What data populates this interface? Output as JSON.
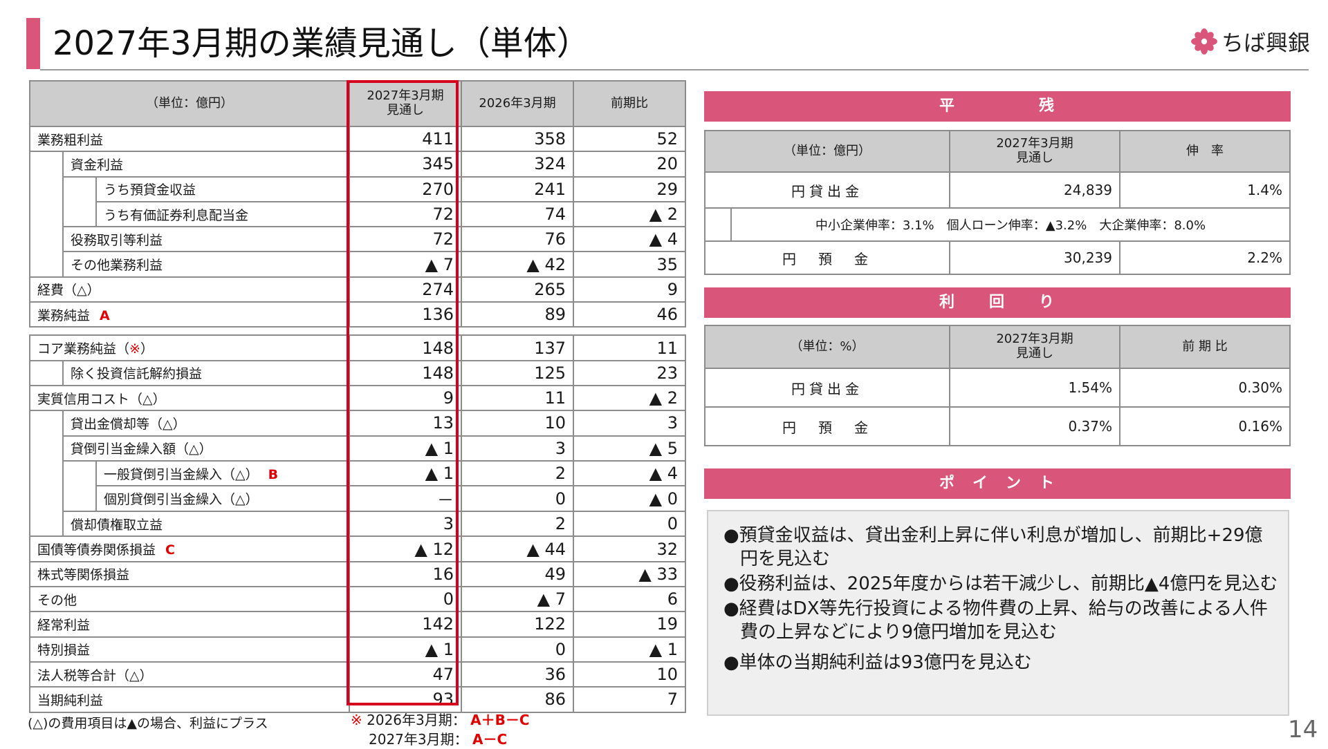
{
  "header": {
    "title": "2027年3月期の業績見通し（単体）",
    "logo_text": "ちば興銀",
    "accent_color": "#d9557a"
  },
  "main_table": {
    "headers": [
      "（単位：億円）",
      "2027年3月期\n見通し",
      "2026年3月期",
      "前期比"
    ],
    "header_col1_line1": "2027年3月期",
    "header_col1_line2": "見通し",
    "rows": [
      {
        "label": "業務粗利益",
        "mark": "",
        "v1": "411",
        "v2": "358",
        "v3": "52"
      },
      {
        "label": "資金利益",
        "mark": "",
        "v1": "345",
        "v2": "324",
        "v3": "20"
      },
      {
        "label": "うち預貸金収益",
        "mark": "",
        "v1": "270",
        "v2": "241",
        "v3": "29"
      },
      {
        "label": "うち有価証券利息配当金",
        "mark": "",
        "v1": "72",
        "v2": "74",
        "v3": "▲ 2"
      },
      {
        "label": "役務取引等利益",
        "mark": "",
        "v1": "72",
        "v2": "76",
        "v3": "▲ 4"
      },
      {
        "label": "その他業務利益",
        "mark": "",
        "v1": "▲ 7",
        "v2": "▲ 42",
        "v3": "35"
      },
      {
        "label": "経費（△）",
        "mark": "",
        "v1": "274",
        "v2": "265",
        "v3": "9"
      },
      {
        "label": "業務純益",
        "mark": "A",
        "v1": "136",
        "v2": "89",
        "v3": "46"
      },
      {
        "label": "コア業務純益（",
        "mark": "※",
        "suffix": "）",
        "v1": "148",
        "v2": "137",
        "v3": "11"
      },
      {
        "label": "除く投資信託解約損益",
        "mark": "",
        "v1": "148",
        "v2": "125",
        "v3": "23"
      },
      {
        "label": "実質信用コスト（△）",
        "mark": "",
        "v1": "9",
        "v2": "11",
        "v3": "▲ 2"
      },
      {
        "label": "貸出金償却等（△）",
        "mark": "",
        "v1": "13",
        "v2": "10",
        "v3": "3"
      },
      {
        "label": "貸倒引当金繰入額（△）",
        "mark": "",
        "v1": "▲ 1",
        "v2": "3",
        "v3": "▲ 5"
      },
      {
        "label": "一般貸倒引当金繰入（△）",
        "mark": "B",
        "v1": "▲ 1",
        "v2": "2",
        "v3": "▲ 4"
      },
      {
        "label": "個別貸倒引当金繰入（△）",
        "mark": "",
        "v1": "－",
        "v2": "0",
        "v3": "▲ 0"
      },
      {
        "label": "償却債権取立益",
        "mark": "",
        "v1": "3",
        "v2": "2",
        "v3": "0"
      },
      {
        "label": "国債等債券関係損益",
        "mark": "C",
        "v1": "▲ 12",
        "v2": "▲ 44",
        "v3": "32"
      },
      {
        "label": "株式等関係損益",
        "mark": "",
        "v1": "16",
        "v2": "49",
        "v3": "▲ 33"
      },
      {
        "label": "その他",
        "mark": "",
        "v1": "0",
        "v2": "▲ 7",
        "v3": "6"
      },
      {
        "label": "経常利益",
        "mark": "",
        "v1": "142",
        "v2": "122",
        "v3": "19"
      },
      {
        "label": "特別損益",
        "mark": "",
        "v1": "▲ 1",
        "v2": "0",
        "v3": "▲ 1"
      },
      {
        "label": "法人税等合計（△）",
        "mark": "",
        "v1": "47",
        "v2": "36",
        "v3": "10"
      },
      {
        "label": "当期純利益",
        "mark": "",
        "v1": "93",
        "v2": "86",
        "v3": "7"
      }
    ]
  },
  "footnotes": {
    "left": "(△)の費用項目は▲の場合、利益にプラス",
    "mark": "※",
    "line1_label": "2026年3月期：",
    "line1_formula": "A＋B－C",
    "line2_label": "2027年3月期：",
    "line2_formula": "A－C"
  },
  "heizan": {
    "band": "平　　　　　残",
    "unit": "（単位：億円）",
    "col1_line1": "2027年3月期",
    "col1_line2": "見通し",
    "col2": "伸　率",
    "row1_label": "円貸出金",
    "row1_v1": "24,839",
    "row1_v2": "1.4%",
    "sub_note": "中小企業伸率：3.1%　個人ローン伸率：▲3.2%　大企業伸率：8.0%",
    "row2_label": "円　預　金",
    "row2_v1": "30,239",
    "row2_v2": "2.2%"
  },
  "rimawari": {
    "band": "利　　回　　り",
    "unit": "（単位：%）",
    "col1_line1": "2027年3月期",
    "col1_line2": "見通し",
    "col2": "前 期 比",
    "row1_label": "円貸出金",
    "row1_v1": "1.54%",
    "row1_v2": "0.30%",
    "row2_label": "円　預　金",
    "row2_v1": "0.37%",
    "row2_v2": "0.16%"
  },
  "points": {
    "band": "ポ　イ　ン　ト",
    "items": [
      "●預貸金収益は、貸出金利上昇に伴い利息が増加し、前期比+29億円を見込む",
      "●役務利益は、2025年度からは若干減少し、前期比▲4億円を見込む",
      "●経費はDX等先行投資による物件費の上昇、給与の改善による人件費の上昇などにより9億円増加を見込む",
      "●単体の当期純利益は93億円を見込む"
    ]
  },
  "page_number": "14"
}
